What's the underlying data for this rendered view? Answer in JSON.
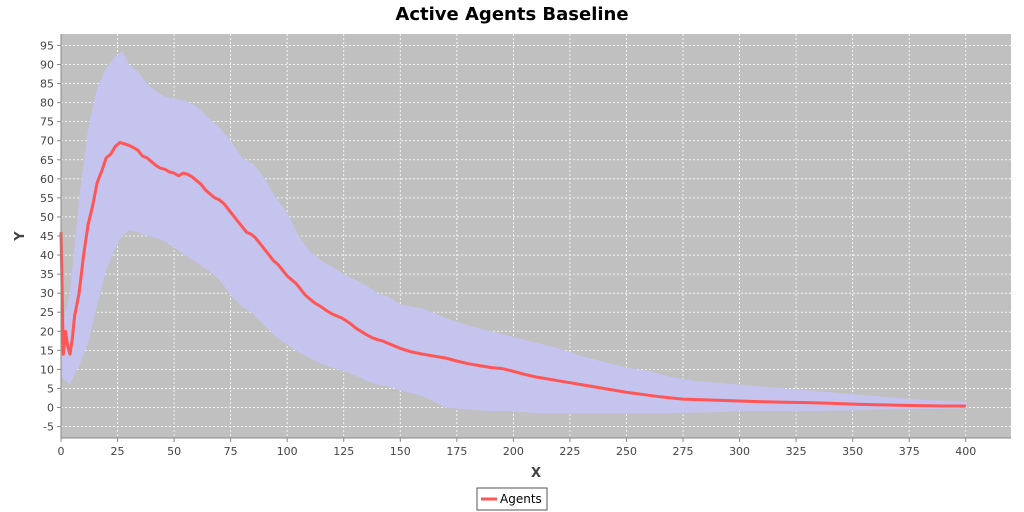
{
  "chart_data": {
    "type": "line",
    "title": "Active Agents Baseline",
    "xlabel": "X",
    "ylabel": "Y",
    "xlim": [
      0,
      420
    ],
    "ylim": [
      -8,
      98
    ],
    "xticks": [
      0,
      25,
      50,
      75,
      100,
      125,
      150,
      175,
      200,
      225,
      250,
      275,
      300,
      325,
      350,
      375,
      400
    ],
    "yticks": [
      -5,
      0,
      5,
      10,
      15,
      20,
      25,
      30,
      35,
      40,
      45,
      50,
      55,
      60,
      65,
      70,
      75,
      80,
      85,
      90,
      95
    ],
    "grid": true,
    "legend_position": "bottom",
    "colors": {
      "plot_background": "#c0c0c0",
      "band": "#c4c4ee",
      "line": "#ff5555",
      "grid": "#ffffff"
    },
    "series": [
      {
        "name": "Agents",
        "x": [
          0,
          1,
          2,
          3,
          4,
          5,
          6,
          8,
          10,
          12,
          14,
          16,
          18,
          20,
          22,
          24,
          26,
          28,
          30,
          32,
          34,
          36,
          38,
          40,
          42,
          44,
          46,
          48,
          50,
          52,
          54,
          56,
          58,
          60,
          62,
          64,
          66,
          68,
          70,
          72,
          74,
          76,
          78,
          80,
          82,
          84,
          86,
          88,
          90,
          92,
          94,
          96,
          98,
          100,
          102,
          104,
          106,
          108,
          110,
          112,
          114,
          116,
          118,
          120,
          122,
          124,
          126,
          128,
          130,
          132,
          134,
          136,
          138,
          140,
          142,
          144,
          146,
          148,
          150,
          155,
          160,
          165,
          170,
          175,
          180,
          185,
          190,
          195,
          200,
          205,
          210,
          215,
          220,
          225,
          230,
          235,
          240,
          245,
          250,
          255,
          260,
          265,
          270,
          275,
          280,
          285,
          290,
          295,
          300,
          310,
          320,
          330,
          340,
          350,
          360,
          370,
          380,
          390,
          400
        ],
        "values": [
          46,
          14,
          20,
          16,
          14,
          18,
          24,
          30,
          40,
          48,
          53,
          59,
          62,
          65.5,
          66.5,
          68.5,
          69.5,
          69.2,
          68.8,
          68.2,
          67.5,
          66,
          65.5,
          64.5,
          63.5,
          62.8,
          62.5,
          61.8,
          61.5,
          60.8,
          61.5,
          61.2,
          60.5,
          59.5,
          58.5,
          57,
          56,
          55,
          54.5,
          53.5,
          52,
          50.5,
          49,
          47.5,
          46,
          45.5,
          44.5,
          43,
          41.5,
          40,
          38.5,
          37.5,
          36,
          34.5,
          33.5,
          32.5,
          31,
          29.5,
          28.5,
          27.5,
          26.8,
          26,
          25.2,
          24.5,
          24,
          23.5,
          22.8,
          22,
          21,
          20.2,
          19.5,
          18.8,
          18.2,
          17.8,
          17.5,
          17,
          16.5,
          16,
          15.5,
          14.6,
          14,
          13.5,
          13,
          12.2,
          11.5,
          11,
          10.5,
          10.2,
          9.5,
          8.7,
          8,
          7.5,
          7,
          6.5,
          6,
          5.5,
          5,
          4.5,
          4,
          3.6,
          3.2,
          2.8,
          2.5,
          2.2,
          2.1,
          2,
          1.9,
          1.8,
          1.7,
          1.5,
          1.4,
          1.3,
          1.1,
          0.9,
          0.7,
          0.6,
          0.5,
          0.4,
          0.4
        ]
      },
      {
        "name": "band_upper",
        "x": [
          0,
          4,
          8,
          12,
          16,
          20,
          24,
          27,
          30,
          34,
          38,
          42,
          46,
          50,
          55,
          60,
          65,
          70,
          75,
          80,
          85,
          90,
          95,
          100,
          105,
          110,
          115,
          120,
          125,
          130,
          135,
          140,
          145,
          150,
          160,
          170,
          180,
          190,
          200,
          210,
          220,
          230,
          240,
          250,
          260,
          270,
          280,
          290,
          300,
          310,
          320,
          330,
          340,
          350,
          360,
          370,
          380,
          390,
          400
        ],
        "values": [
          20,
          30,
          55,
          73,
          84,
          89,
          92,
          93.5,
          90,
          88,
          85,
          83,
          81.5,
          81,
          80.5,
          79,
          76,
          73.5,
          70,
          65.5,
          64,
          60,
          55,
          51,
          45,
          41,
          38.5,
          37,
          35,
          33.5,
          32,
          30,
          29,
          27,
          26,
          23.5,
          21.5,
          20,
          18.5,
          17,
          15.5,
          13.5,
          12,
          10.5,
          9.5,
          8,
          7,
          6.5,
          6,
          5.5,
          5,
          4.5,
          4,
          3.5,
          3,
          2.5,
          2,
          1.8,
          1.5
        ]
      },
      {
        "name": "band_lower",
        "x": [
          0,
          4,
          8,
          12,
          16,
          20,
          24,
          27,
          30,
          34,
          38,
          42,
          46,
          50,
          55,
          60,
          65,
          70,
          75,
          80,
          85,
          90,
          95,
          100,
          105,
          110,
          115,
          120,
          125,
          130,
          135,
          140,
          145,
          150,
          160,
          170,
          180,
          190,
          200,
          210,
          220,
          230,
          240,
          250,
          260,
          270,
          280,
          290,
          300,
          310,
          320,
          330,
          340,
          350,
          360,
          370,
          380,
          390,
          400
        ],
        "values": [
          8,
          6,
          11,
          17,
          27,
          36,
          42,
          45,
          46.5,
          46,
          45,
          44.5,
          43.5,
          42,
          40,
          38,
          36,
          33.5,
          29.5,
          26.5,
          24.5,
          21.5,
          18.5,
          16.5,
          14.5,
          13,
          11.5,
          10.5,
          9.5,
          8.5,
          7,
          6,
          5.5,
          4.5,
          3,
          0,
          -0.5,
          -1,
          -1,
          -1.5,
          -1.5,
          -1.5,
          -1.5,
          -1.5,
          -1.5,
          -1.5,
          -1.3,
          -1.2,
          -1,
          -1,
          -1,
          -1,
          -0.8,
          -0.8,
          -0.6,
          -0.5,
          -0.4,
          -0.3,
          -0.2
        ]
      }
    ]
  }
}
